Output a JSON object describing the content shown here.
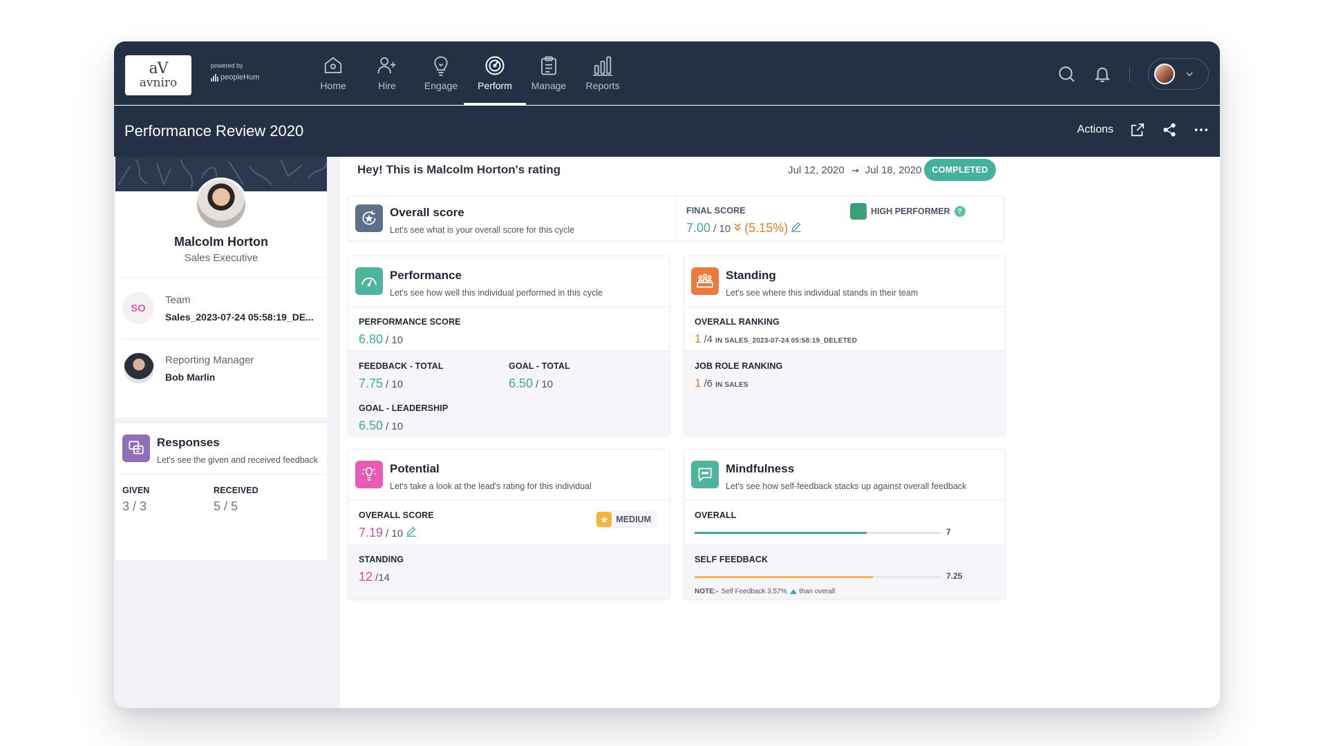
{
  "brand": {
    "logo_mark": "aV",
    "logo_word": "avniro",
    "powered_by": "powered by",
    "partner": "peopleHum"
  },
  "nav": {
    "items": [
      {
        "label": "Home",
        "icon": "home-icon"
      },
      {
        "label": "Hire",
        "icon": "add-user-icon"
      },
      {
        "label": "Engage",
        "icon": "bulb-icon"
      },
      {
        "label": "Perform",
        "icon": "gauge-icon",
        "active": true
      },
      {
        "label": "Manage",
        "icon": "clipboard-icon"
      },
      {
        "label": "Reports",
        "icon": "bar-chart-icon"
      }
    ]
  },
  "page": {
    "title": "Performance Review 2020",
    "actions_label": "Actions"
  },
  "profile": {
    "name": "Malcolm Horton",
    "role": "Sales Executive",
    "team_initials": "SO",
    "team_label": "Team",
    "team_value": "Sales_2023-07-24 05:58:19_DE...",
    "manager_label": "Reporting Manager",
    "manager_value": "Bob Marlin"
  },
  "responses": {
    "title": "Responses",
    "subtitle": "Let's see the given and received feedback",
    "given_label": "GIVEN",
    "given_value": "3 / 3",
    "received_label": "RECEIVED",
    "received_value": "5 / 5"
  },
  "rating": {
    "heading": "Hey! This is Malcolm Horton's rating",
    "date_start": "Jul 12, 2020",
    "date_end": "Jul 18, 2020",
    "status": "COMPLETED"
  },
  "overall": {
    "title": "Overall score",
    "subtitle": "Let's see what is your overall score for this cycle",
    "final_label": "FINAL SCORE",
    "final_value": "7.00",
    "final_of": "/ 10",
    "change": "(5.15%)",
    "badge": "HIGH PERFORMER"
  },
  "performance": {
    "title": "Performance",
    "subtitle": "Let's see how well this individual performed in this cycle",
    "score_label": "PERFORMANCE SCORE",
    "score_value": "6.80",
    "score_of": "/ 10",
    "feedback_label": "FEEDBACK - TOTAL",
    "feedback_value": "7.75",
    "feedback_of": "/ 10",
    "goal_total_label": "GOAL - TOTAL",
    "goal_total_value": "6.50",
    "goal_total_of": "/ 10",
    "goal_lead_label": "GOAL - LEADERSHIP",
    "goal_lead_value": "6.50",
    "goal_lead_of": "/ 10"
  },
  "standing": {
    "title": "Standing",
    "subtitle": "Let's see where this individual stands in their team",
    "overall_label": "OVERALL RANKING",
    "overall_rank": "1",
    "overall_of": "/4",
    "overall_in": "IN SALES_2023-07-24 05:58:19_DELETED",
    "job_label": "JOB ROLE RANKING",
    "job_rank": "1",
    "job_of": "/6",
    "job_in": "IN SALES"
  },
  "potential": {
    "title": "Potential",
    "subtitle": "Let's take a look at the lead's rating for this individual",
    "score_label": "OVERALL SCORE",
    "score_value": "7.19",
    "score_of": "/ 10",
    "badge": "MEDIUM",
    "standing_label": "STANDING",
    "standing_value": "12",
    "standing_of": "/14"
  },
  "mindfulness": {
    "title": "Mindfulness",
    "subtitle": "Let's see how self-feedback stacks up against overall feedback",
    "overall_label": "OVERALL",
    "overall_value": "7",
    "overall_fraction": 0.7,
    "self_label": "SELF FEEDBACK",
    "self_value": "7.25",
    "self_fraction": 0.725,
    "note_prefix": "NOTE:-",
    "note_text": "Self Feedback 3.57%",
    "note_suffix": "than overall"
  },
  "colors": {
    "navy": "#243145",
    "teal": "#43a89b",
    "pink": "#d84aa6",
    "orange": "#e77b2b",
    "completed": "#45b19c"
  }
}
